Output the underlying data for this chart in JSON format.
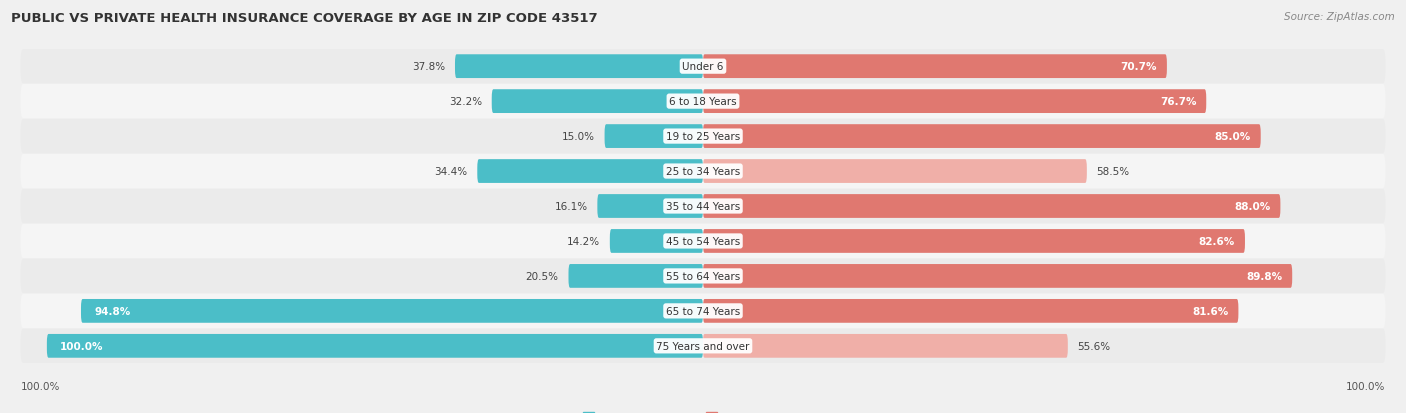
{
  "title": "PUBLIC VS PRIVATE HEALTH INSURANCE COVERAGE BY AGE IN ZIP CODE 43517",
  "source": "Source: ZipAtlas.com",
  "categories": [
    "Under 6",
    "6 to 18 Years",
    "19 to 25 Years",
    "25 to 34 Years",
    "35 to 44 Years",
    "45 to 54 Years",
    "55 to 64 Years",
    "65 to 74 Years",
    "75 Years and over"
  ],
  "public_values": [
    37.8,
    32.2,
    15.0,
    34.4,
    16.1,
    14.2,
    20.5,
    94.8,
    100.0
  ],
  "private_values": [
    70.7,
    76.7,
    85.0,
    58.5,
    88.0,
    82.6,
    89.8,
    81.6,
    55.6
  ],
  "public_color": "#4BBEC8",
  "private_color_strong": "#E07870",
  "private_color_light": "#F0AFA8",
  "row_bg_odd": "#EBEBEB",
  "row_bg_even": "#F5F5F5",
  "max_val": 100.0,
  "title_fontsize": 9.5,
  "source_fontsize": 7.5,
  "label_fontsize": 7.5,
  "value_fontsize": 7.5,
  "legend_fontsize": 8,
  "bar_height": 0.68,
  "private_light_threshold": 58.5,
  "private_strong_threshold": 65.0
}
